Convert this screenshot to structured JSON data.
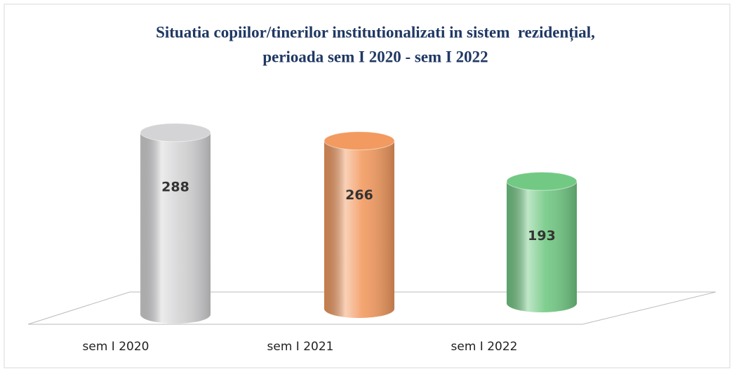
{
  "chart_data": {
    "type": "bar3d",
    "title": [
      "Situatia copiilor/tinerilor institutionalizati in sistem  rezidențial,",
      "perioada sem I 2020 - sem I 2022"
    ],
    "categories": [
      "sem I 2020",
      "sem I 2021",
      "sem I 2022"
    ],
    "values": [
      288,
      266,
      193
    ],
    "colors": [
      "#d4d4d6",
      "#f29a60",
      "#72c984"
    ]
  }
}
